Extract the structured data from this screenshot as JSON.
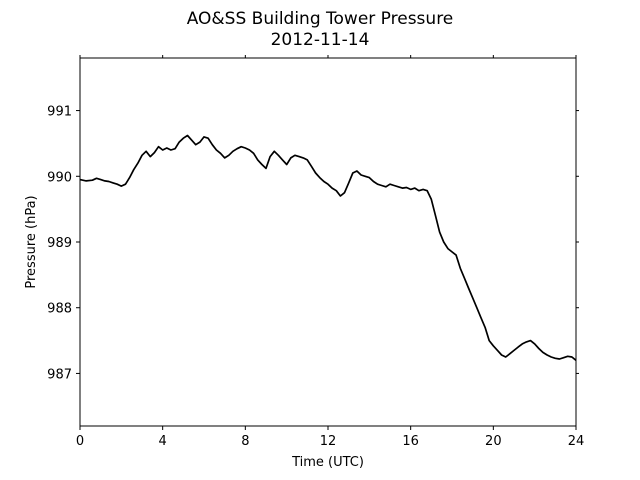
{
  "chart_data": {
    "type": "line",
    "title": "AO&SS Building Tower Pressure",
    "subtitle": "2012-11-14",
    "xlabel": "Time (UTC)",
    "ylabel": "Pressure (hPa)",
    "xlim": [
      0,
      24
    ],
    "ylim": [
      986.2,
      991.8
    ],
    "x_ticks": [
      "0",
      "4",
      "8",
      "12",
      "16",
      "20",
      "24"
    ],
    "y_ticks": [
      "987",
      "988",
      "989",
      "990",
      "991"
    ],
    "grid": false,
    "line_color": "#000000",
    "series": [
      {
        "x": [
          0,
          0.3,
          0.6,
          0.8,
          1.0,
          1.2,
          1.4,
          1.6,
          1.8,
          2.0,
          2.2,
          2.4,
          2.6,
          2.8,
          3.0,
          3.2,
          3.4,
          3.6,
          3.8,
          4.0,
          4.2,
          4.4,
          4.6,
          4.8,
          5.0,
          5.2,
          5.4,
          5.6,
          5.8,
          6.0,
          6.2,
          6.4,
          6.6,
          6.8,
          7.0,
          7.2,
          7.4,
          7.6,
          7.8,
          8.0,
          8.2,
          8.4,
          8.6,
          8.8,
          9.0,
          9.2,
          9.4,
          9.6,
          9.8,
          10.0,
          10.2,
          10.4,
          10.6,
          10.8,
          11.0,
          11.2,
          11.4,
          11.6,
          11.8,
          12.0,
          12.2,
          12.4,
          12.6,
          12.8,
          13.0,
          13.2,
          13.4,
          13.6,
          13.8,
          14.0,
          14.2,
          14.4,
          14.6,
          14.8,
          15.0,
          15.2,
          15.4,
          15.6,
          15.8,
          16.0,
          16.2,
          16.4,
          16.6,
          16.8,
          17.0,
          17.2,
          17.4,
          17.6,
          17.8,
          18.0,
          18.2,
          18.4,
          18.6,
          18.8,
          19.0,
          19.2,
          19.4,
          19.6,
          19.8,
          20.0,
          20.2,
          20.4,
          20.6,
          20.8,
          21.0,
          21.2,
          21.4,
          21.6,
          21.8,
          22.0,
          22.2,
          22.4,
          22.6,
          22.8,
          23.0,
          23.2,
          23.4,
          23.6,
          23.8,
          24.0
        ],
        "y": [
          989.95,
          989.93,
          989.94,
          989.97,
          989.95,
          989.93,
          989.92,
          989.9,
          989.88,
          989.85,
          989.88,
          989.98,
          990.1,
          990.2,
          990.32,
          990.38,
          990.3,
          990.36,
          990.45,
          990.4,
          990.43,
          990.4,
          990.42,
          990.52,
          990.58,
          990.62,
          990.55,
          990.48,
          990.52,
          990.6,
          990.58,
          990.48,
          990.4,
          990.35,
          990.28,
          990.32,
          990.38,
          990.42,
          990.45,
          990.43,
          990.4,
          990.35,
          990.25,
          990.18,
          990.12,
          990.3,
          990.38,
          990.32,
          990.25,
          990.18,
          990.28,
          990.32,
          990.3,
          990.28,
          990.25,
          990.15,
          990.05,
          989.98,
          989.92,
          989.88,
          989.82,
          989.78,
          989.7,
          989.75,
          989.9,
          990.05,
          990.08,
          990.02,
          990.0,
          989.98,
          989.92,
          989.88,
          989.86,
          989.84,
          989.88,
          989.86,
          989.84,
          989.82,
          989.83,
          989.8,
          989.82,
          989.78,
          989.8,
          989.78,
          989.65,
          989.4,
          989.15,
          989.0,
          988.9,
          988.85,
          988.8,
          988.6,
          988.45,
          988.3,
          988.15,
          988.0,
          987.85,
          987.7,
          987.5,
          987.42,
          987.35,
          987.28,
          987.25,
          987.3,
          987.35,
          987.4,
          987.45,
          987.48,
          987.5,
          987.45,
          987.38,
          987.32,
          987.28,
          987.25,
          987.23,
          987.22,
          987.24,
          987.26,
          987.25,
          987.2
        ]
      }
    ]
  }
}
